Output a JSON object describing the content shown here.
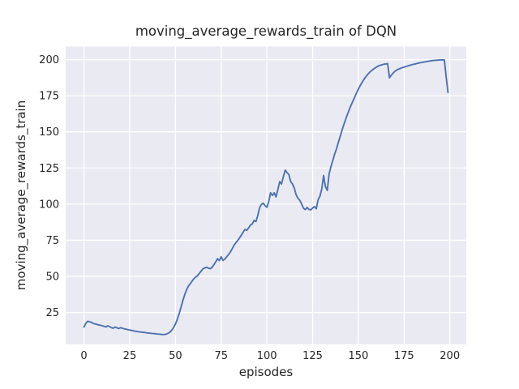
{
  "chart_data": {
    "type": "line",
    "title": "moving_average_rewards_train of DQN",
    "xlabel": "episodes",
    "ylabel": "moving_average_rewards_train",
    "x_start": 0,
    "x_step": 1,
    "x_ticks": [
      0,
      25,
      50,
      75,
      100,
      125,
      150,
      175,
      200
    ],
    "y_ticks": [
      25,
      50,
      75,
      100,
      125,
      150,
      175,
      200
    ],
    "xlim": [
      -10,
      209
    ],
    "ylim": [
      3,
      209
    ],
    "grid": true,
    "legend": "none",
    "colors": {
      "axes_background": "#EAEAF2",
      "gridline": "#FFFFFF",
      "text": "#262626",
      "figure_background": "#FFFFFF",
      "line": "#4C72B0"
    },
    "series": [
      {
        "name": "moving_average_rewards_train",
        "color": "#4C72B0",
        "values": [
          14.9,
          17.5,
          18.9,
          18.6,
          18.2,
          17.4,
          17.1,
          16.8,
          16.4,
          16.2,
          15.8,
          15.4,
          15.0,
          15.8,
          15.2,
          14.5,
          14.1,
          14.9,
          14.4,
          13.9,
          14.5,
          14.1,
          13.7,
          13.4,
          13.1,
          12.9,
          12.6,
          12.3,
          12.0,
          11.8,
          11.6,
          11.5,
          11.3,
          11.2,
          11.0,
          10.8,
          10.7,
          10.5,
          10.4,
          10.3,
          10.1,
          10.0,
          9.9,
          9.7,
          9.8,
          10.0,
          10.6,
          11.4,
          12.8,
          14.6,
          17.0,
          20.2,
          24.0,
          28.5,
          33.0,
          37.0,
          40.5,
          43.0,
          44.8,
          46.5,
          48.2,
          49.5,
          50.3,
          52.0,
          53.5,
          55.2,
          55.8,
          56.3,
          55.7,
          55.3,
          56.2,
          58.0,
          60.0,
          62.2,
          60.9,
          63.5,
          61.0,
          62.0,
          63.5,
          65.1,
          66.8,
          69.0,
          71.5,
          73.2,
          74.8,
          76.5,
          78.5,
          80.5,
          82.5,
          81.9,
          83.5,
          85.5,
          86.3,
          88.7,
          87.9,
          92.0,
          97.5,
          99.8,
          100.6,
          99.0,
          97.8,
          101.7,
          107.8,
          106.0,
          107.8,
          105.0,
          110.0,
          115.6,
          113.9,
          119.0,
          123.5,
          121.8,
          120.5,
          115.6,
          113.9,
          111.0,
          106.4,
          104.0,
          102.6,
          100.0,
          97.2,
          96.2,
          97.7,
          96.3,
          96.0,
          97.3,
          98.2,
          96.8,
          103.0,
          105.5,
          110.5,
          119.8,
          112.0,
          109.5,
          120.7,
          126.0,
          130.0,
          134.5,
          138.0,
          142.5,
          146.5,
          150.8,
          154.8,
          158.5,
          162.0,
          165.3,
          168.4,
          171.3,
          174.0,
          177.0,
          179.5,
          182.0,
          184.2,
          186.2,
          188.0,
          189.6,
          191.0,
          192.2,
          193.2,
          194.1,
          194.9,
          195.6,
          196.1,
          196.5,
          196.8,
          197.0,
          197.2,
          187.4,
          189.2,
          190.7,
          191.9,
          192.8,
          193.4,
          193.9,
          194.4,
          194.8,
          195.2,
          195.6,
          196.0,
          196.4,
          196.7,
          197.0,
          197.3,
          197.6,
          197.9,
          198.1,
          198.4,
          198.6,
          198.8,
          199.0,
          199.2,
          199.4,
          199.5,
          199.6,
          199.7,
          199.8,
          199.8,
          199.8,
          188.0,
          177.3
        ]
      }
    ]
  }
}
